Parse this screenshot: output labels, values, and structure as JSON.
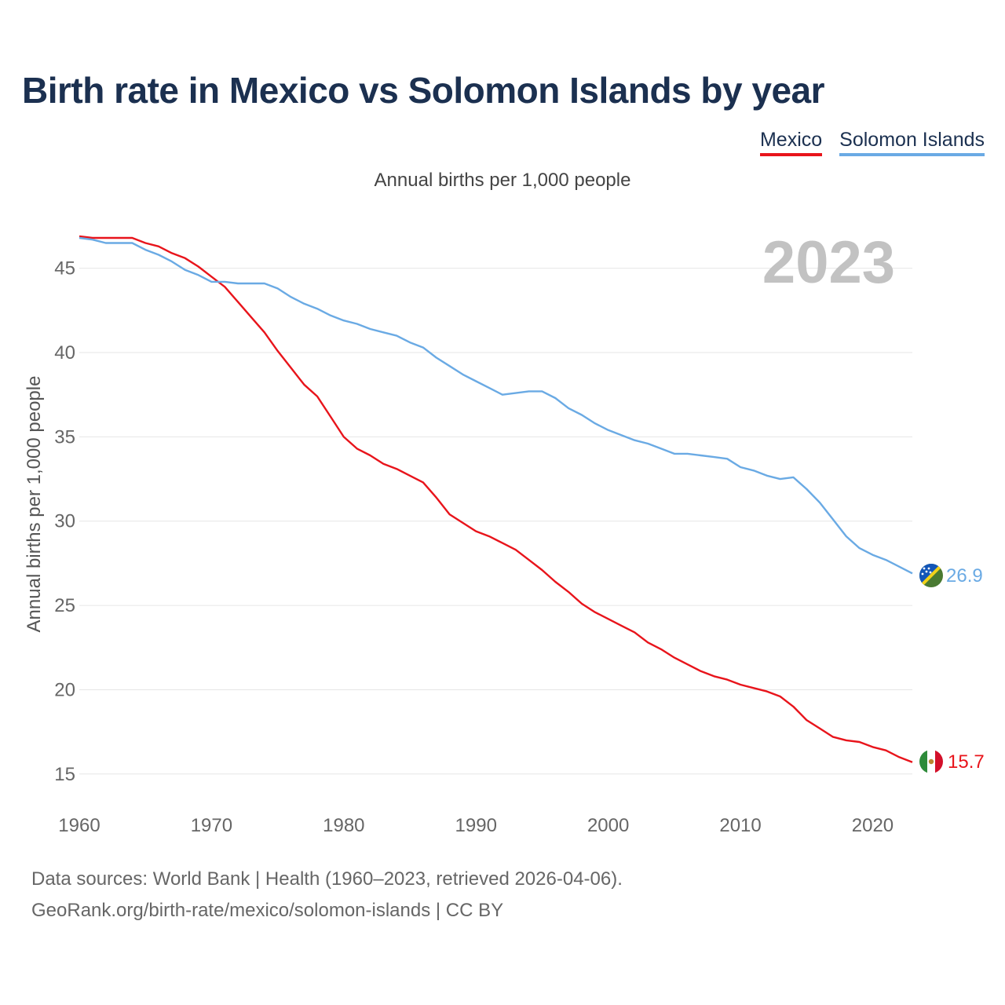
{
  "chart_data": {
    "type": "line",
    "title": "Birth rate in Mexico vs Solomon Islands by year",
    "subtitle": "Annual births per 1,000 people",
    "ylabel": "Annual births per 1,000 people",
    "xlabel": "",
    "year_label": "2023",
    "xlim": [
      1960,
      2023
    ],
    "ylim": [
      13.5,
      47.5
    ],
    "x_ticks": [
      "1960",
      "1970",
      "1980",
      "1990",
      "2000",
      "2010",
      "2020"
    ],
    "y_ticks": [
      "15",
      "20",
      "25",
      "30",
      "35",
      "40",
      "45"
    ],
    "legend": [
      "Mexico",
      "Solomon Islands"
    ],
    "series": [
      {
        "name": "Mexico",
        "color": "#e8141b",
        "end_label": "15.7",
        "x": [
          1960,
          1961,
          1962,
          1963,
          1964,
          1965,
          1966,
          1967,
          1968,
          1969,
          1970,
          1971,
          1972,
          1973,
          1974,
          1975,
          1976,
          1977,
          1978,
          1979,
          1980,
          1981,
          1982,
          1983,
          1984,
          1985,
          1986,
          1987,
          1988,
          1989,
          1990,
          1991,
          1992,
          1993,
          1994,
          1995,
          1996,
          1997,
          1998,
          1999,
          2000,
          2001,
          2002,
          2003,
          2004,
          2005,
          2006,
          2007,
          2008,
          2009,
          2010,
          2011,
          2012,
          2013,
          2014,
          2015,
          2016,
          2017,
          2018,
          2019,
          2020,
          2021,
          2022,
          2023
        ],
        "values": [
          46.9,
          46.8,
          46.8,
          46.8,
          46.8,
          46.5,
          46.3,
          45.9,
          45.6,
          45.1,
          44.5,
          43.9,
          43.0,
          42.1,
          41.2,
          40.1,
          39.1,
          38.1,
          37.4,
          36.2,
          35.0,
          34.3,
          33.9,
          33.4,
          33.1,
          32.7,
          32.3,
          31.4,
          30.4,
          29.9,
          29.4,
          29.1,
          28.7,
          28.3,
          27.7,
          27.1,
          26.4,
          25.8,
          25.1,
          24.6,
          24.2,
          23.8,
          23.4,
          22.8,
          22.4,
          21.9,
          21.5,
          21.1,
          20.8,
          20.6,
          20.3,
          20.1,
          19.9,
          19.6,
          19.0,
          18.2,
          17.7,
          17.2,
          17.0,
          16.9,
          16.6,
          16.4,
          16.0,
          15.7
        ]
      },
      {
        "name": "Solomon Islands",
        "color": "#6aaae4",
        "end_label": "26.9",
        "x": [
          1960,
          1961,
          1962,
          1963,
          1964,
          1965,
          1966,
          1967,
          1968,
          1969,
          1970,
          1971,
          1972,
          1973,
          1974,
          1975,
          1976,
          1977,
          1978,
          1979,
          1980,
          1981,
          1982,
          1983,
          1984,
          1985,
          1986,
          1987,
          1988,
          1989,
          1990,
          1991,
          1992,
          1993,
          1994,
          1995,
          1996,
          1997,
          1998,
          1999,
          2000,
          2001,
          2002,
          2003,
          2004,
          2005,
          2006,
          2007,
          2008,
          2009,
          2010,
          2011,
          2012,
          2013,
          2014,
          2015,
          2016,
          2017,
          2018,
          2019,
          2020,
          2021,
          2022,
          2023
        ],
        "values": [
          46.8,
          46.7,
          46.5,
          46.5,
          46.5,
          46.1,
          45.8,
          45.4,
          44.9,
          44.6,
          44.2,
          44.2,
          44.1,
          44.1,
          44.1,
          43.8,
          43.3,
          42.9,
          42.6,
          42.2,
          41.9,
          41.7,
          41.4,
          41.2,
          41.0,
          40.6,
          40.3,
          39.7,
          39.2,
          38.7,
          38.3,
          37.9,
          37.5,
          37.6,
          37.7,
          37.7,
          37.3,
          36.7,
          36.3,
          35.8,
          35.4,
          35.1,
          34.8,
          34.6,
          34.3,
          34.0,
          34.0,
          33.9,
          33.8,
          33.7,
          33.2,
          33.0,
          32.7,
          32.5,
          32.6,
          31.9,
          31.1,
          30.1,
          29.1,
          28.4,
          28.0,
          27.7,
          27.3,
          26.9
        ]
      }
    ]
  },
  "footer": {
    "source_line": "Data sources: World Bank | Health (1960–2023, retrieved 2026-04-06).",
    "url_line": "GeoRank.org/birth-rate/mexico/solomon-islands | CC BY"
  }
}
